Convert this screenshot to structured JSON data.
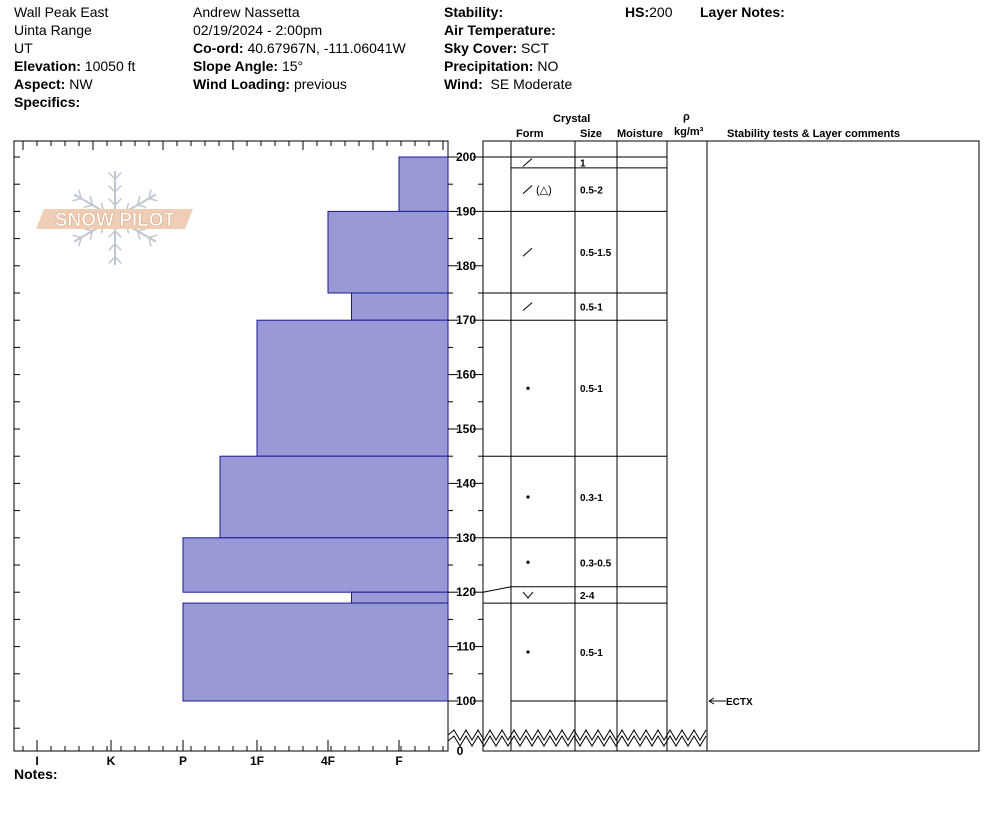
{
  "header": {
    "location": "Wall Peak East",
    "range": "Uinta Range",
    "state": "UT",
    "elevation_label": "Elevation:",
    "elevation": "10050 ft",
    "aspect_label": "Aspect:",
    "aspect": "NW",
    "specifics_label": "Specifics:",
    "observer": "Andrew Nassetta",
    "datetime": "02/19/2024 - 2:00pm",
    "coord_label": "Co-ord:",
    "coord": "40.67967N, -111.06041W",
    "slope_label": "Slope Angle:",
    "slope": "15°",
    "wind_loading_label": "Wind Loading:",
    "wind_loading": "previous",
    "stability_label": "Stability:",
    "air_temp_label": "Air Temperature:",
    "sky_cover_label": "Sky Cover:",
    "sky_cover": "SCT",
    "precip_label": "Precipitation:",
    "precip": "NO",
    "wind_label": "Wind:",
    "wind": "SE Moderate",
    "hs_label": "HS:",
    "hs": "200",
    "layer_notes_label": "Layer Notes:"
  },
  "notes_label": "Notes:",
  "logo_text": "SNOW PILOT",
  "columns": {
    "crystal": "Crystal",
    "form": "Form",
    "size": "Size",
    "moisture": "Moisture",
    "rho": "ρ",
    "density_unit": "kg/m³",
    "stability": "Stability tests & Layer comments"
  },
  "colors": {
    "hardness_fill": "#9999d6",
    "hardness_stroke": "#1a1a99"
  },
  "chart_data": {
    "type": "bar",
    "title": "",
    "ylabel": "",
    "ylim": [
      100,
      200
    ],
    "yticks": [
      100,
      110,
      120,
      130,
      140,
      150,
      160,
      170,
      180,
      190,
      200
    ],
    "y_break_label": "0",
    "hardness_scale": [
      "I",
      "K",
      "P",
      "1F",
      "4F",
      "F"
    ],
    "layers": [
      {
        "top": 200,
        "bottom": 190,
        "hardness": "F"
      },
      {
        "top": 190,
        "bottom": 175,
        "hardness": "4F"
      },
      {
        "top": 175,
        "bottom": 170,
        "hardness": "4F-"
      },
      {
        "top": 170,
        "bottom": 145,
        "hardness": "1F"
      },
      {
        "top": 145,
        "bottom": 130,
        "hardness": "1F+"
      },
      {
        "top": 130,
        "bottom": 120,
        "hardness": "P"
      },
      {
        "top": 120,
        "bottom": 118,
        "hardness": "4F-"
      },
      {
        "top": 118,
        "bottom": 100,
        "hardness": "P"
      }
    ],
    "crystals": [
      {
        "top": 200,
        "bottom": 198,
        "form": "DF",
        "size": "1"
      },
      {
        "top": 198,
        "bottom": 190,
        "form": "DF (SH)",
        "size": "0.5-2"
      },
      {
        "top": 190,
        "bottom": 175,
        "form": "DF",
        "size": "0.5-1.5"
      },
      {
        "top": 175,
        "bottom": 170,
        "form": "DF",
        "size": "0.5-1"
      },
      {
        "top": 170,
        "bottom": 145,
        "form": "RG",
        "size": "0.5-1"
      },
      {
        "top": 145,
        "bottom": 130,
        "form": "RG",
        "size": "0.3-1"
      },
      {
        "top": 130,
        "bottom": 121,
        "form": "RG",
        "size": "0.3-0.5"
      },
      {
        "top": 121,
        "bottom": 118,
        "form": "SH",
        "size": "2-4"
      },
      {
        "top": 118,
        "bottom": 100,
        "form": "RG",
        "size": "0.5-1"
      }
    ],
    "tests": [
      {
        "height": 100,
        "label": "ECTX"
      }
    ]
  }
}
